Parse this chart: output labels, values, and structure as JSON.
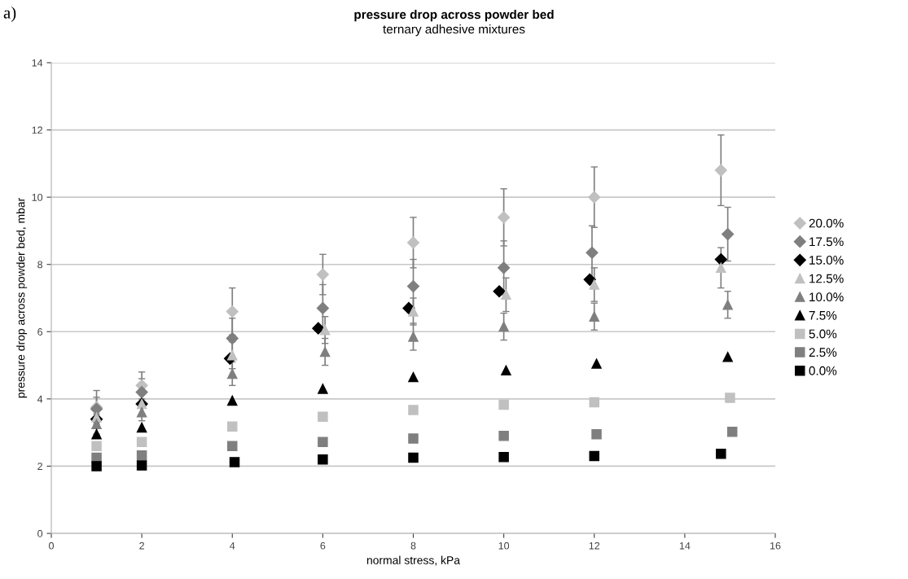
{
  "chart_data": {
    "type": "scatter",
    "title": "pressure drop across powder bed",
    "subtitle": "ternary adhesive mixtures",
    "xlabel": "normal stress, kPa",
    "ylabel": "pressure drop across powder bed, mbar",
    "annotations": [
      "a)"
    ],
    "xlim": [
      0,
      16
    ],
    "xticks": [
      0,
      2,
      4,
      6,
      8,
      10,
      12,
      14,
      16
    ],
    "ylim": [
      0,
      14
    ],
    "yticks": [
      0,
      2,
      4,
      6,
      8,
      10,
      12,
      14
    ],
    "grid": "y",
    "legend": "right",
    "series": [
      {
        "name": "20.0%",
        "color": "#c0c0c0",
        "marker": "diamond",
        "x": [
          1,
          2,
          4,
          6,
          8,
          10,
          12,
          14.8
        ],
        "values": [
          3.75,
          4.4,
          6.6,
          7.7,
          8.65,
          9.4,
          10.0,
          10.8
        ],
        "errors": [
          0.5,
          0.4,
          0.7,
          0.6,
          0.75,
          0.85,
          0.9,
          1.05
        ]
      },
      {
        "name": "17.5%",
        "color": "#7f7f7f",
        "marker": "diamond",
        "x": [
          1,
          2,
          4,
          6,
          8,
          10,
          11.95,
          14.95
        ],
        "values": [
          3.7,
          4.2,
          5.8,
          6.7,
          7.35,
          7.9,
          8.35,
          8.9
        ],
        "errors": [
          0.35,
          0.4,
          0.6,
          0.7,
          0.8,
          0.8,
          0.8,
          0.8
        ]
      },
      {
        "name": "15.0%",
        "color": "#000000",
        "marker": "diamond",
        "x": [
          1,
          2,
          3.95,
          5.9,
          7.9,
          9.9,
          11.9,
          14.8
        ],
        "values": [
          3.4,
          3.85,
          5.2,
          6.1,
          6.7,
          7.2,
          7.55,
          8.15
        ]
      },
      {
        "name": "12.5%",
        "color": "#c0c0c0",
        "marker": "triangle",
        "x": [
          1,
          2,
          4,
          6.05,
          8,
          10.05,
          12,
          14.8
        ],
        "values": [
          3.45,
          3.85,
          5.3,
          6.05,
          6.6,
          7.1,
          7.4,
          7.9
        ],
        "errors": [
          0.3,
          0.3,
          0.4,
          0.4,
          0.4,
          0.5,
          0.5,
          0.6
        ]
      },
      {
        "name": "10.0%",
        "color": "#7f7f7f",
        "marker": "triangle",
        "x": [
          1,
          2,
          4,
          6.05,
          8,
          10,
          12,
          14.95
        ],
        "values": [
          3.25,
          3.6,
          4.75,
          5.4,
          5.85,
          6.15,
          6.45,
          6.8
        ],
        "errors": [
          0.3,
          0.25,
          0.35,
          0.4,
          0.4,
          0.4,
          0.4,
          0.4
        ]
      },
      {
        "name": "7.5%",
        "color": "#000000",
        "marker": "triangle",
        "x": [
          1,
          2,
          4,
          6,
          8,
          10.05,
          12.05,
          14.95
        ],
        "values": [
          2.95,
          3.15,
          3.95,
          4.3,
          4.65,
          4.85,
          5.05,
          5.25
        ]
      },
      {
        "name": "5.0%",
        "color": "#c0c0c0",
        "marker": "square",
        "x": [
          1,
          2,
          4,
          6,
          8,
          10,
          12,
          15
        ],
        "values": [
          2.6,
          2.72,
          3.18,
          3.47,
          3.67,
          3.83,
          3.9,
          4.03
        ]
      },
      {
        "name": "2.5%",
        "color": "#7f7f7f",
        "marker": "square",
        "x": [
          1,
          2,
          4,
          6,
          8,
          10,
          12.05,
          15.05
        ],
        "values": [
          2.25,
          2.32,
          2.6,
          2.72,
          2.82,
          2.9,
          2.95,
          3.02
        ]
      },
      {
        "name": "0.0%",
        "color": "#000000",
        "marker": "square",
        "x": [
          1,
          2,
          4.05,
          6,
          8,
          10,
          12,
          14.8
        ],
        "values": [
          2.0,
          2.02,
          2.12,
          2.2,
          2.25,
          2.27,
          2.3,
          2.37
        ]
      }
    ]
  }
}
